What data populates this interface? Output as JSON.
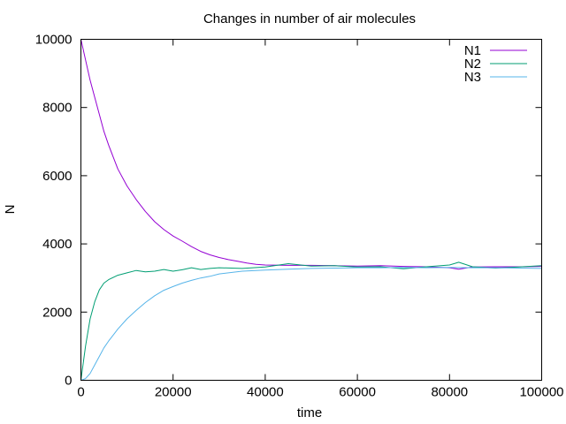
{
  "chart_data": {
    "type": "line",
    "title": "Changes in number of air molecules",
    "xlabel": "time",
    "ylabel": "N",
    "xlim": [
      0,
      100000
    ],
    "ylim": [
      0,
      10000
    ],
    "xticks": [
      0,
      20000,
      40000,
      60000,
      80000,
      100000
    ],
    "xtick_labels": [
      "0",
      "20000",
      "40000",
      "60000",
      "80000",
      "100000"
    ],
    "yticks": [
      0,
      2000,
      4000,
      6000,
      8000,
      10000
    ],
    "ytick_labels": [
      "0",
      "2000",
      "4000",
      "6000",
      "8000",
      "10000"
    ],
    "grid": false,
    "legend_position": "top-right",
    "series": [
      {
        "name": "N1",
        "color": "#9400d3",
        "x": [
          0,
          1000,
          2000,
          3000,
          4000,
          5000,
          6000,
          8000,
          10000,
          12000,
          14000,
          16000,
          18000,
          20000,
          22000,
          24000,
          26000,
          28000,
          30000,
          32000,
          34000,
          36000,
          38000,
          40000,
          45000,
          50000,
          55000,
          60000,
          65000,
          70000,
          75000,
          80000,
          82000,
          85000,
          90000,
          95000,
          100000
        ],
        "y": [
          10000,
          9400,
          8800,
          8300,
          7800,
          7300,
          6900,
          6200,
          5700,
          5300,
          4950,
          4650,
          4420,
          4230,
          4080,
          3920,
          3780,
          3680,
          3600,
          3540,
          3490,
          3440,
          3400,
          3380,
          3370,
          3370,
          3360,
          3350,
          3360,
          3340,
          3330,
          3300,
          3260,
          3320,
          3330,
          3330,
          3340
        ]
      },
      {
        "name": "N2",
        "color": "#009e73",
        "x": [
          0,
          1000,
          2000,
          3000,
          4000,
          5000,
          6000,
          8000,
          10000,
          12000,
          14000,
          16000,
          18000,
          20000,
          22000,
          24000,
          26000,
          28000,
          30000,
          35000,
          40000,
          45000,
          50000,
          55000,
          60000,
          65000,
          70000,
          75000,
          80000,
          82000,
          85000,
          90000,
          95000,
          100000
        ],
        "y": [
          0,
          1000,
          1800,
          2300,
          2650,
          2850,
          2950,
          3080,
          3150,
          3220,
          3180,
          3200,
          3250,
          3200,
          3240,
          3300,
          3250,
          3280,
          3300,
          3280,
          3320,
          3420,
          3350,
          3360,
          3320,
          3330,
          3270,
          3330,
          3380,
          3460,
          3330,
          3290,
          3320,
          3360
        ]
      },
      {
        "name": "N3",
        "color": "#56b4e9",
        "x": [
          0,
          1000,
          2000,
          3000,
          4000,
          5000,
          6000,
          8000,
          10000,
          12000,
          14000,
          16000,
          18000,
          20000,
          22000,
          24000,
          26000,
          28000,
          30000,
          35000,
          40000,
          45000,
          50000,
          55000,
          60000,
          65000,
          70000,
          75000,
          80000,
          85000,
          90000,
          95000,
          100000
        ],
        "y": [
          0,
          50,
          200,
          450,
          700,
          950,
          1150,
          1500,
          1800,
          2050,
          2280,
          2480,
          2640,
          2750,
          2850,
          2930,
          3000,
          3050,
          3120,
          3200,
          3230,
          3260,
          3280,
          3290,
          3300,
          3300,
          3310,
          3300,
          3310,
          3300,
          3300,
          3290,
          3280
        ]
      }
    ]
  }
}
